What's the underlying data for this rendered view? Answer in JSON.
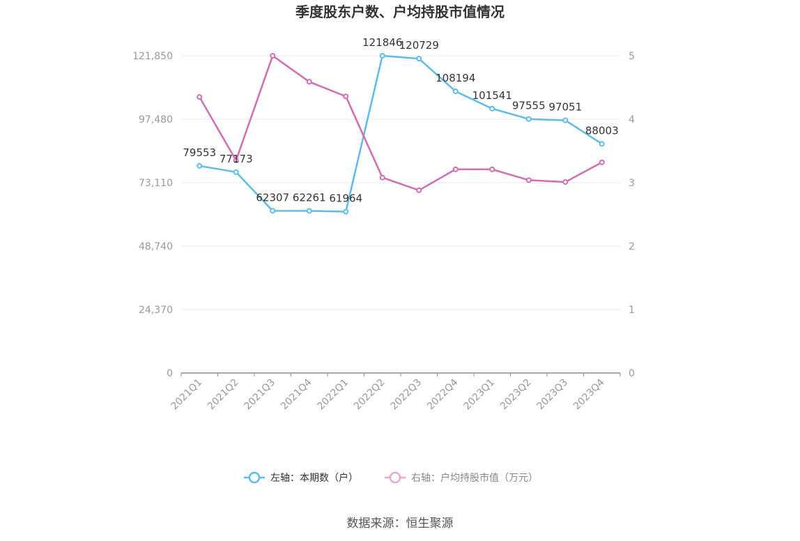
{
  "chart_data": {
    "type": "line",
    "title": "季度股东户数、户均持股市值情况",
    "categories": [
      "2021Q1",
      "2021Q2",
      "2021Q3",
      "2021Q4",
      "2022Q1",
      "2022Q2",
      "2022Q3",
      "2022Q4",
      "2023Q1",
      "2023Q2",
      "2023Q3",
      "2023Q4"
    ],
    "left_axis": {
      "ticks": [
        "0",
        "24,370",
        "48,740",
        "73,110",
        "97,480",
        "121,850"
      ],
      "tick_values": [
        0,
        24370,
        48740,
        73110,
        97480,
        121850
      ],
      "ylim": [
        0,
        121850
      ]
    },
    "right_axis": {
      "ticks": [
        "0",
        "1",
        "2",
        "3",
        "4",
        "5"
      ],
      "tick_values": [
        0,
        1,
        2,
        3,
        4,
        5
      ],
      "ylim": [
        0,
        5
      ]
    },
    "series": [
      {
        "name": "左轴：本期数（户）",
        "axis": "left",
        "color": "#5bbcec",
        "values": [
          79553,
          77173,
          62307,
          62261,
          61964,
          121846,
          120729,
          108194,
          101541,
          97555,
          97051,
          88003
        ],
        "labels": [
          "79553",
          "77173",
          "62307",
          "62261",
          "61964",
          "121846",
          "120729",
          "108194",
          "101541",
          "97555",
          "97051",
          "88003"
        ]
      },
      {
        "name": "右轴：户均持股市值（万元）",
        "axis": "right",
        "color": "#d46bb3",
        "values": [
          4.35,
          3.35,
          5.0,
          4.59,
          4.36,
          3.08,
          2.88,
          3.21,
          3.21,
          3.04,
          3.01,
          3.32
        ]
      }
    ],
    "legend": {
      "placement": "bottom-center"
    },
    "grid": true,
    "source": "数据来源：恒生聚源"
  }
}
